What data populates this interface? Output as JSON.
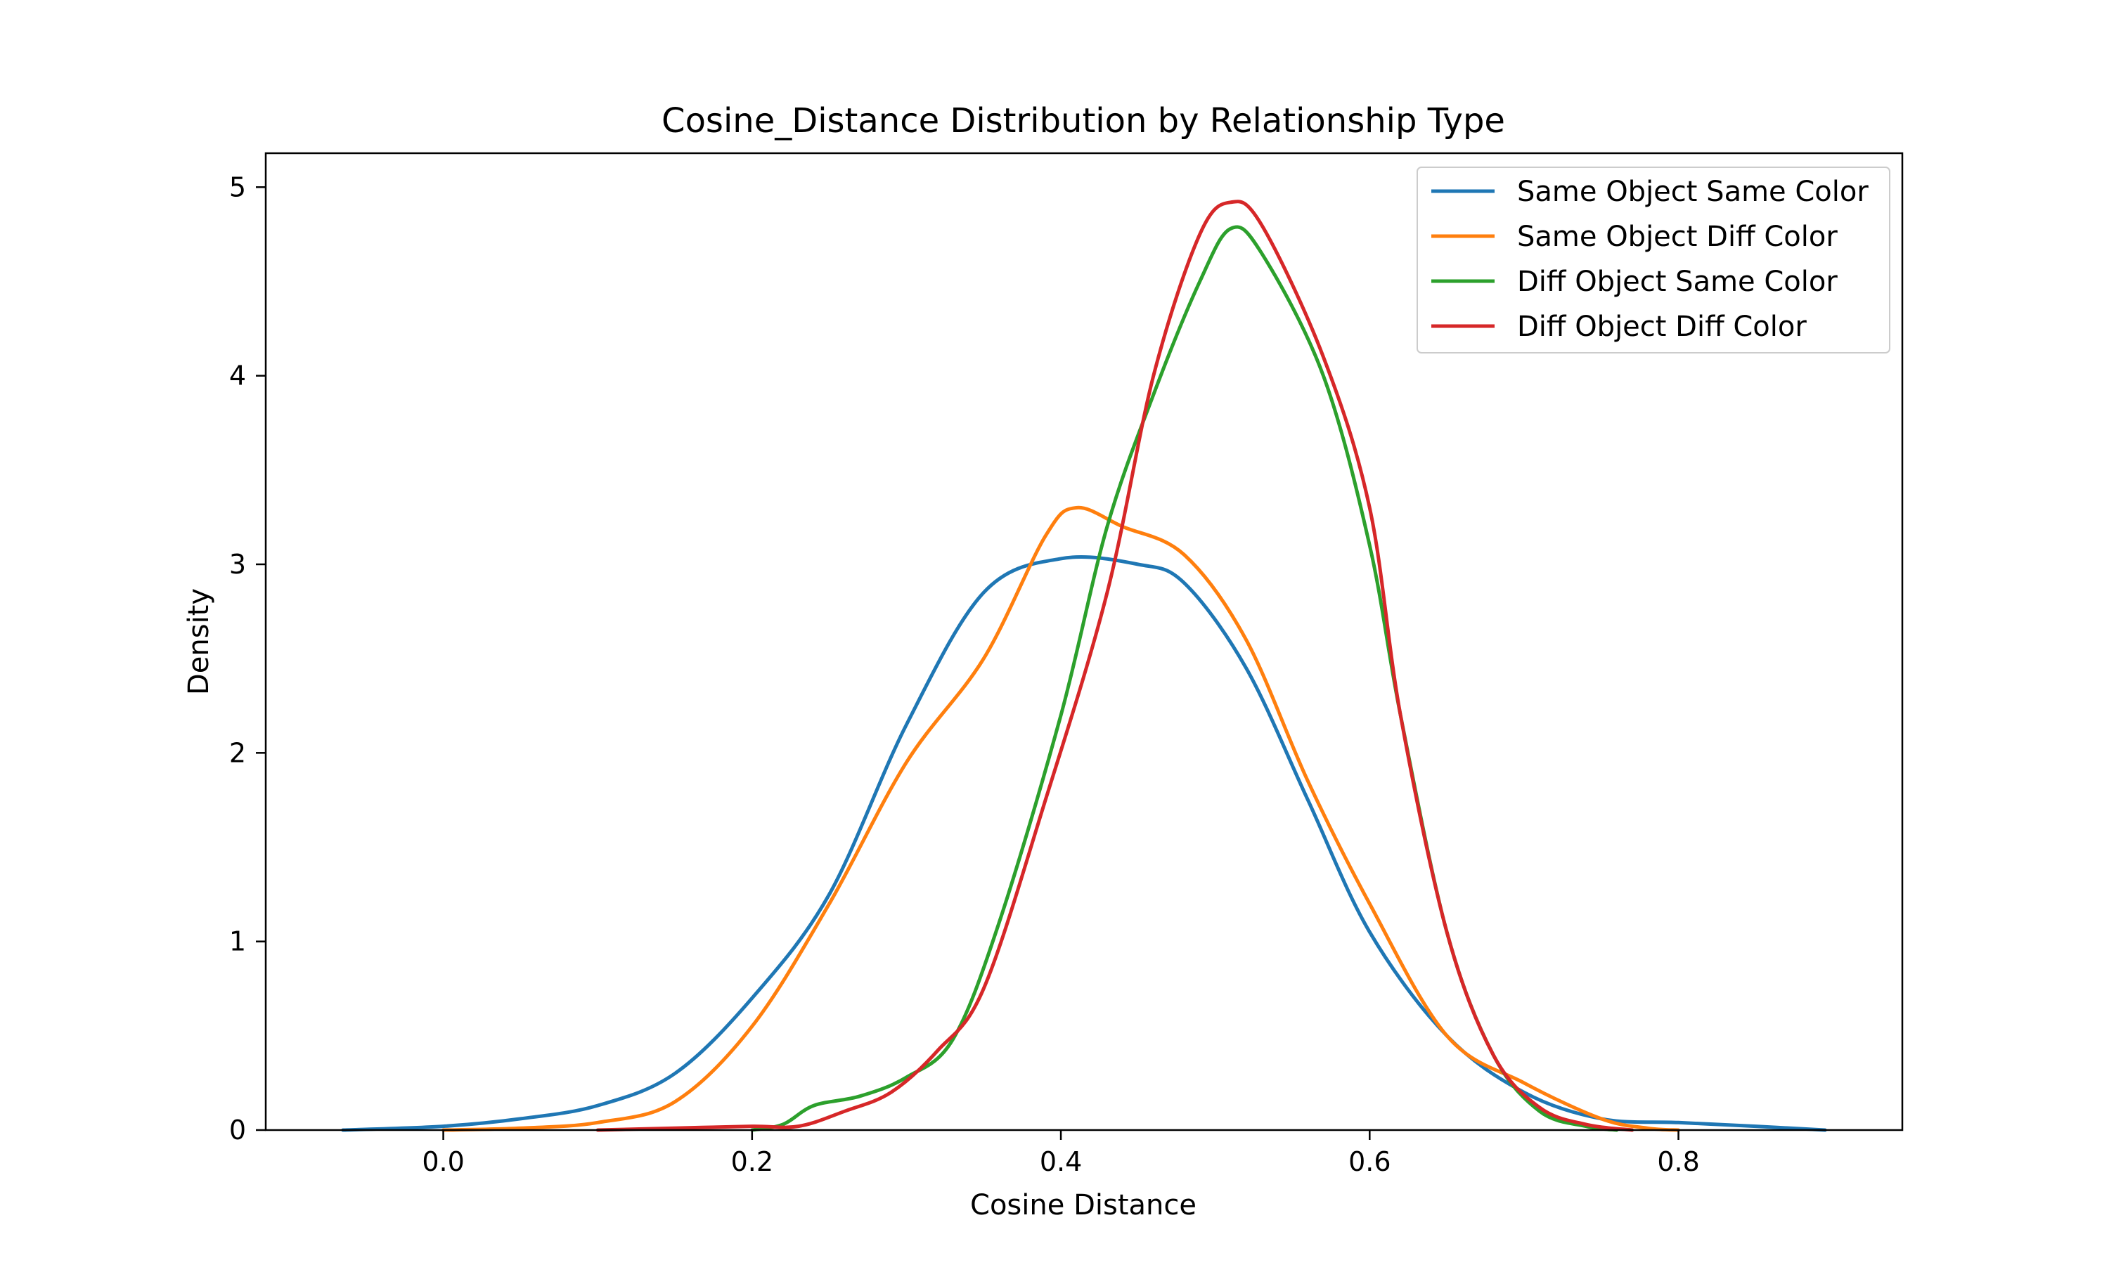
{
  "chart_data": {
    "type": "line",
    "title": "Cosine_Distance Distribution by Relationship Type",
    "xlabel": "Cosine Distance",
    "ylabel": "Density",
    "xlim": [
      -0.115,
      0.945
    ],
    "ylim": [
      0,
      5.18
    ],
    "xticks": [
      0.0,
      0.2,
      0.4,
      0.6,
      0.8
    ],
    "xtick_labels": [
      "0.0",
      "0.2",
      "0.4",
      "0.6",
      "0.8"
    ],
    "yticks": [
      0,
      1,
      2,
      3,
      4,
      5
    ],
    "ytick_labels": [
      "0",
      "1",
      "2",
      "3",
      "4",
      "5"
    ],
    "grid": false,
    "legend_position": "top-right",
    "series": [
      {
        "name": "Same Object Same Color",
        "color": "#1f77b4",
        "points": [
          [
            -0.065,
            0
          ],
          [
            0,
            0.02
          ],
          [
            0.05,
            0.06
          ],
          [
            0.1,
            0.13
          ],
          [
            0.15,
            0.3
          ],
          [
            0.2,
            0.7
          ],
          [
            0.25,
            1.25
          ],
          [
            0.3,
            2.15
          ],
          [
            0.35,
            2.85
          ],
          [
            0.4,
            3.03
          ],
          [
            0.45,
            3.0
          ],
          [
            0.48,
            2.9
          ],
          [
            0.52,
            2.45
          ],
          [
            0.56,
            1.75
          ],
          [
            0.6,
            1.05
          ],
          [
            0.65,
            0.5
          ],
          [
            0.7,
            0.2
          ],
          [
            0.75,
            0.06
          ],
          [
            0.8,
            0.04
          ],
          [
            0.85,
            0.02
          ],
          [
            0.895,
            0
          ]
        ]
      },
      {
        "name": "Same Object Diff Color",
        "color": "#ff7f0e",
        "points": [
          [
            0,
            0
          ],
          [
            0.05,
            0.01
          ],
          [
            0.1,
            0.04
          ],
          [
            0.15,
            0.15
          ],
          [
            0.2,
            0.55
          ],
          [
            0.25,
            1.2
          ],
          [
            0.3,
            1.95
          ],
          [
            0.35,
            2.5
          ],
          [
            0.39,
            3.15
          ],
          [
            0.41,
            3.3
          ],
          [
            0.44,
            3.2
          ],
          [
            0.48,
            3.05
          ],
          [
            0.52,
            2.6
          ],
          [
            0.56,
            1.85
          ],
          [
            0.6,
            1.2
          ],
          [
            0.65,
            0.5
          ],
          [
            0.7,
            0.25
          ],
          [
            0.75,
            0.06
          ],
          [
            0.78,
            0.01
          ],
          [
            0.8,
            0
          ]
        ]
      },
      {
        "name": "Diff Object Same Color",
        "color": "#2ca02c",
        "points": [
          [
            0.2,
            0
          ],
          [
            0.22,
            0.03
          ],
          [
            0.24,
            0.13
          ],
          [
            0.27,
            0.18
          ],
          [
            0.3,
            0.28
          ],
          [
            0.33,
            0.48
          ],
          [
            0.36,
            1.1
          ],
          [
            0.4,
            2.2
          ],
          [
            0.43,
            3.2
          ],
          [
            0.46,
            3.9
          ],
          [
            0.49,
            4.5
          ],
          [
            0.51,
            4.78
          ],
          [
            0.53,
            4.65
          ],
          [
            0.57,
            4.0
          ],
          [
            0.6,
            3.1
          ],
          [
            0.62,
            2.2
          ],
          [
            0.65,
            1.05
          ],
          [
            0.68,
            0.4
          ],
          [
            0.71,
            0.1
          ],
          [
            0.74,
            0.02
          ],
          [
            0.76,
            0
          ]
        ]
      },
      {
        "name": "Diff Object Diff Color",
        "color": "#d62728",
        "points": [
          [
            0.1,
            0
          ],
          [
            0.15,
            0.01
          ],
          [
            0.2,
            0.02
          ],
          [
            0.23,
            0.02
          ],
          [
            0.26,
            0.1
          ],
          [
            0.29,
            0.2
          ],
          [
            0.32,
            0.42
          ],
          [
            0.35,
            0.75
          ],
          [
            0.39,
            1.75
          ],
          [
            0.43,
            2.85
          ],
          [
            0.46,
            4.0
          ],
          [
            0.49,
            4.75
          ],
          [
            0.51,
            4.92
          ],
          [
            0.53,
            4.8
          ],
          [
            0.57,
            4.1
          ],
          [
            0.6,
            3.3
          ],
          [
            0.62,
            2.2
          ],
          [
            0.65,
            1.05
          ],
          [
            0.68,
            0.4
          ],
          [
            0.71,
            0.12
          ],
          [
            0.74,
            0.03
          ],
          [
            0.77,
            0
          ]
        ]
      }
    ]
  }
}
